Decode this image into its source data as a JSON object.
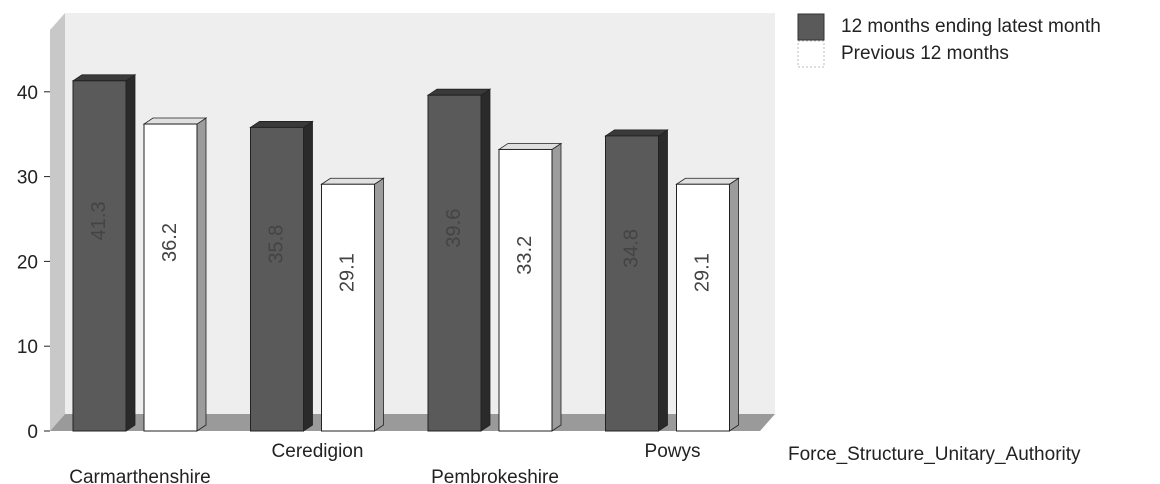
{
  "chart_data": {
    "type": "bar",
    "categories": [
      "Carmarthenshire",
      "Ceredigion",
      "Pembrokeshire",
      "Powys"
    ],
    "series": [
      {
        "name": "12 months ending latest month",
        "values": [
          41.3,
          35.8,
          39.6,
          34.8
        ],
        "color": "#5a5a5a"
      },
      {
        "name": "Previous 12 months",
        "values": [
          36.2,
          29.1,
          33.2,
          29.1
        ],
        "color": "#ffffff"
      }
    ],
    "title": "",
    "xlabel": "Force_Structure_Unitary_Authority",
    "ylabel": "",
    "ylim": [
      0,
      45
    ],
    "yticks": [
      0,
      10,
      20,
      30,
      40
    ],
    "grid": false,
    "legend_position": "top-right",
    "style": "3d-bars"
  }
}
